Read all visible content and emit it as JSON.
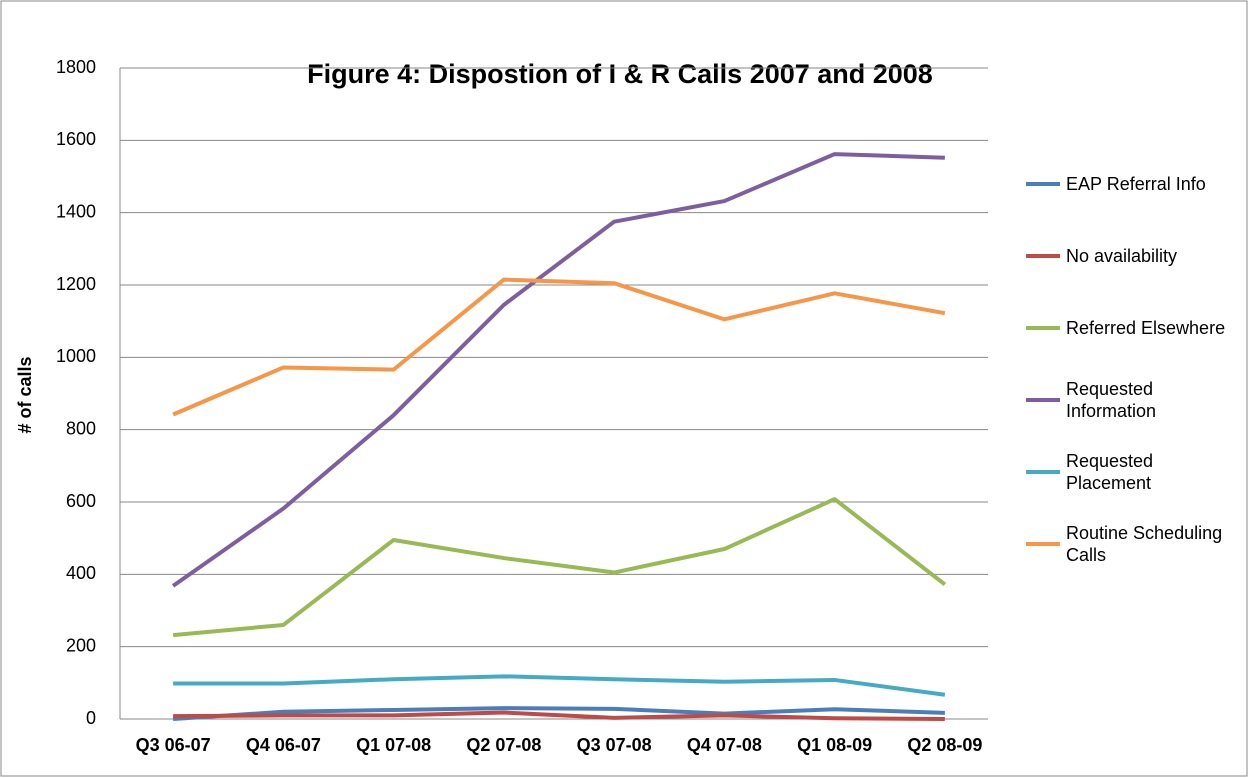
{
  "chart_data": {
    "type": "line",
    "title": "Figure 4:  Dispostion of I & R Calls 2007 and 2008",
    "y_label": "# of calls",
    "categories": [
      "Q3 06-07",
      "Q4 06-07",
      "Q1 07-08",
      "Q2 07-08",
      "Q3 07-08",
      "Q4 07-08",
      "Q1 08-09",
      "Q2 08-09"
    ],
    "series": [
      {
        "name": "EAP Referral Info",
        "color": "#4a7ebb",
        "values": [
          0,
          20,
          25,
          30,
          28,
          15,
          27,
          17
        ]
      },
      {
        "name": "No availability",
        "color": "#be4b48",
        "values": [
          8,
          10,
          10,
          18,
          3,
          10,
          2,
          0
        ]
      },
      {
        "name": "Referred Elsewhere",
        "color": "#98b954",
        "values": [
          232,
          260,
          495,
          445,
          405,
          470,
          608,
          372
        ]
      },
      {
        "name": "Requested Information",
        "color": "#7d5fa0",
        "values": [
          368,
          582,
          840,
          1145,
          1375,
          1432,
          1562,
          1552
        ]
      },
      {
        "name": "Requested Placement",
        "color": "#46aac5",
        "values": [
          98,
          98,
          110,
          118,
          110,
          103,
          108,
          67
        ]
      },
      {
        "name": "Routine Scheduling Calls",
        "color": "#f79646",
        "values": [
          842,
          972,
          966,
          1215,
          1205,
          1105,
          1177,
          1122
        ]
      }
    ],
    "ylim": [
      0,
      1800
    ],
    "yticks": [
      0,
      200,
      400,
      600,
      800,
      1000,
      1200,
      1400,
      1600,
      1800
    ],
    "grid": true,
    "legend": "right"
  }
}
